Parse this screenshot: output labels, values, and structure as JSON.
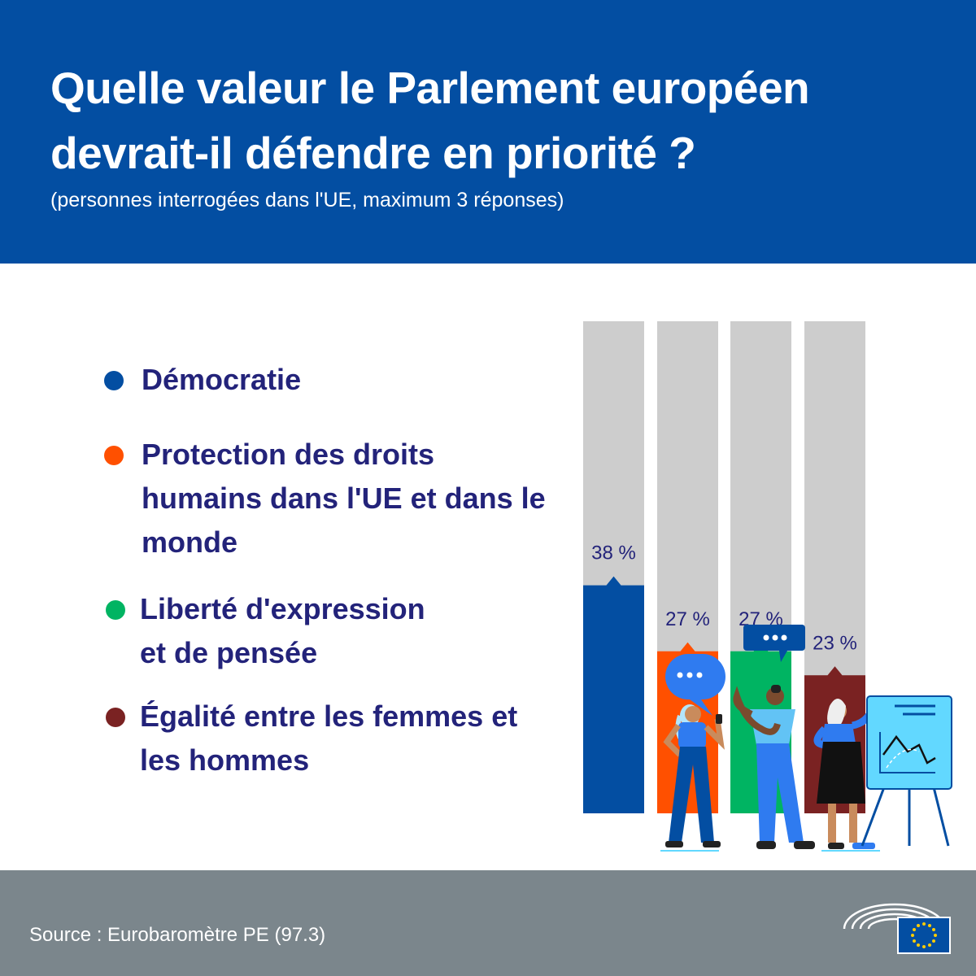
{
  "header": {
    "title": "Quelle valeur le Parlement européen devrait-il défendre en priorité ?",
    "subtitle": "(personnes interrogées dans l'UE, maximum 3 réponses)"
  },
  "colors": {
    "header_bg": "#034ea2",
    "label_text": "#23237a",
    "bar_track": "#cdcdcd",
    "footer_bg": "#7b868c"
  },
  "chart_data": {
    "type": "bar",
    "categories": [
      "Démocratie",
      "Protection des droits humains dans l'UE et dans le monde",
      "Liberté d'expression et de pensée",
      "Égalité entre les femmes et les hommes"
    ],
    "values": [
      38,
      27,
      27,
      23
    ],
    "value_labels": [
      "38 %",
      "27 %",
      "27 %",
      "23 %"
    ],
    "colors": [
      "#034ea2",
      "#ff5000",
      "#00b462",
      "#7a2222"
    ],
    "ylim": [
      0,
      100
    ],
    "legend_position": "left"
  },
  "footer": {
    "source": "Source : Eurobaromètre PE (97.3)"
  },
  "icons": [
    "speech-bubble-icon",
    "european-parliament-logo",
    "eu-flag-icon",
    "people-illustration"
  ]
}
